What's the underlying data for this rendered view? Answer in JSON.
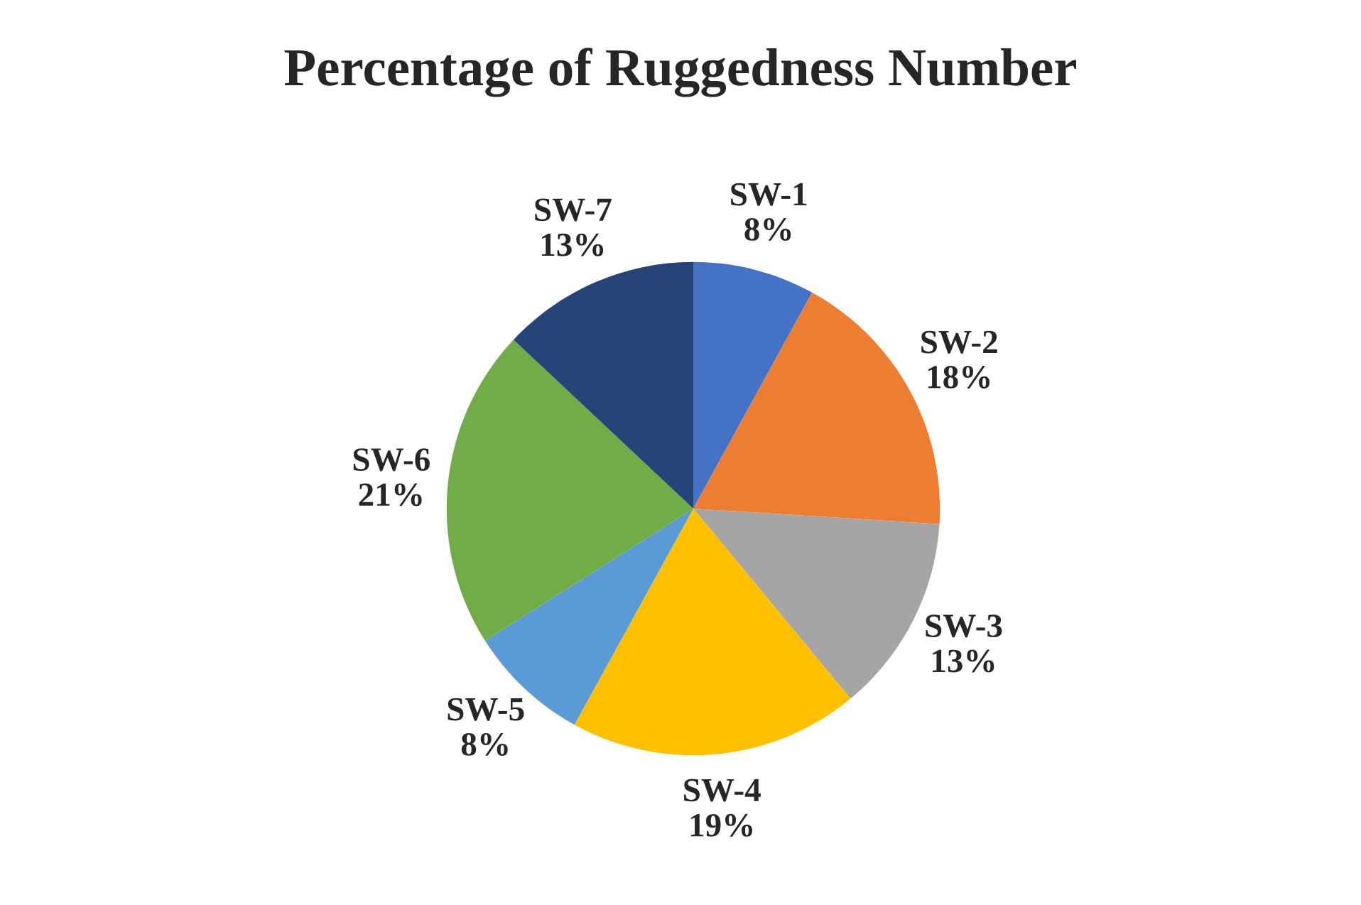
{
  "chart_data": {
    "type": "pie",
    "title": "Percentage of Ruggedness Number",
    "categories": [
      "SW-1",
      "SW-2",
      "SW-3",
      "SW-4",
      "SW-5",
      "SW-6",
      "SW-7"
    ],
    "values": [
      8,
      18,
      13,
      19,
      8,
      21,
      13
    ],
    "value_labels": [
      "8%",
      "18%",
      "13%",
      "19%",
      "8%",
      "21%",
      "13%"
    ],
    "colors": [
      "#4472c4",
      "#ed7d31",
      "#a5a5a5",
      "#ffc000",
      "#5b9bd5",
      "#70ad47",
      "#264478"
    ],
    "legend": false
  }
}
